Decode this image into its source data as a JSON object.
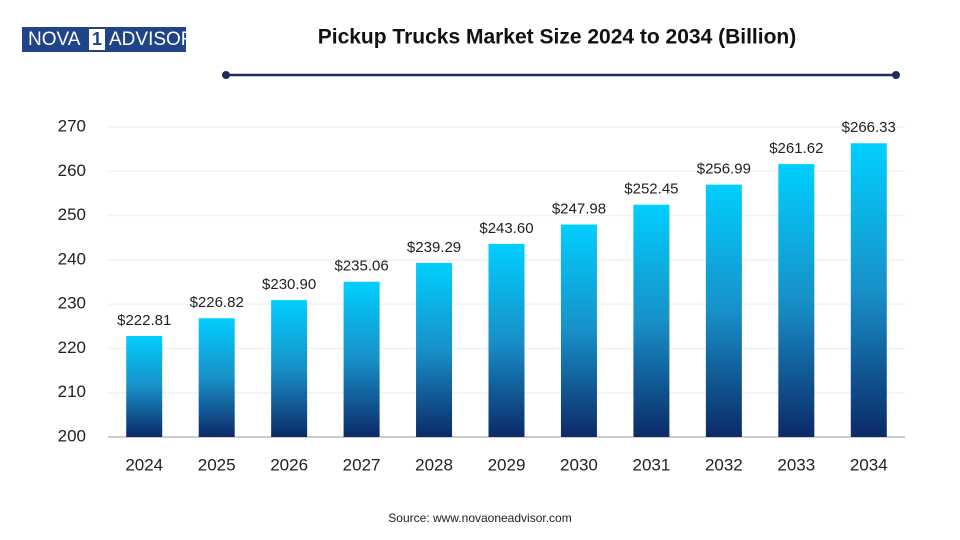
{
  "logo": {
    "left": "NOVA",
    "mid": "1",
    "right": "ADVISOR"
  },
  "chart_data": {
    "type": "bar",
    "title": "Pickup Trucks Market Size 2024 to 2034 (Billion)",
    "categories": [
      "2024",
      "2025",
      "2026",
      "2027",
      "2028",
      "2029",
      "2030",
      "2031",
      "2032",
      "2033",
      "2034"
    ],
    "values": [
      222.81,
      226.82,
      230.9,
      235.06,
      239.29,
      243.6,
      247.98,
      252.45,
      256.99,
      261.62,
      266.33
    ],
    "value_labels": [
      "$222.81",
      "$226.82",
      "$230.90",
      "$235.06",
      "$239.29",
      "$243.60",
      "$247.98",
      "$252.45",
      "$256.99",
      "$261.62",
      "$266.33"
    ],
    "color": "#00cfff",
    "ylim": [
      200,
      270
    ],
    "yticks": [
      200,
      210,
      220,
      230,
      240,
      250,
      260,
      270
    ],
    "grid": true,
    "source": "Source: www.novaoneadvisor.com"
  }
}
